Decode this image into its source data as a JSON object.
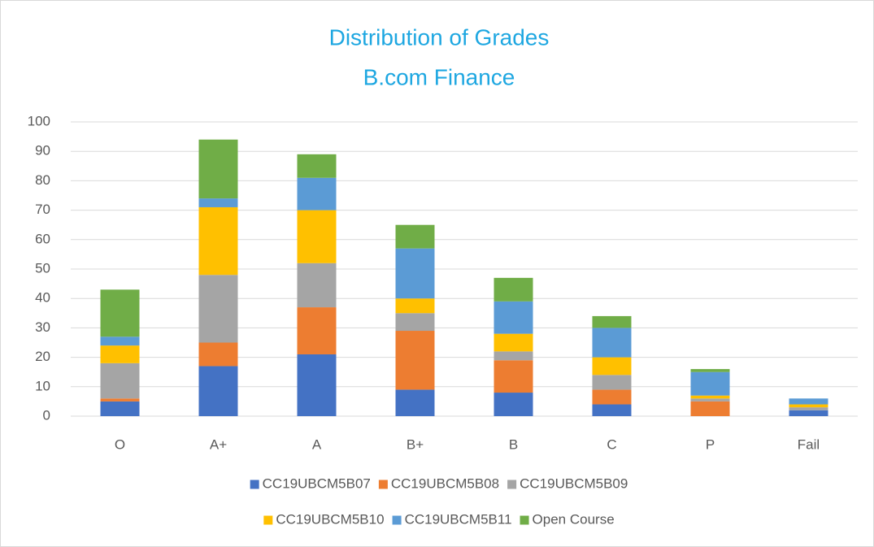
{
  "chart_data": {
    "type": "stacked_bar",
    "title": "Distribution of Grades",
    "subtitle": "B.com Finance",
    "categories": [
      "O",
      "A+",
      "A",
      "B+",
      "B",
      "C",
      "P",
      "Fail"
    ],
    "series": [
      {
        "name": "CC19UBCM5B07",
        "color": "#4472c4",
        "values": [
          5,
          17,
          21,
          9,
          8,
          4,
          0,
          2
        ]
      },
      {
        "name": "CC19UBCM5B08",
        "color": "#ed7d31",
        "values": [
          1,
          8,
          16,
          20,
          11,
          5,
          5,
          0
        ]
      },
      {
        "name": "CC19UBCM5B09",
        "color": "#a5a5a5",
        "values": [
          12,
          23,
          15,
          6,
          3,
          5,
          1,
          1
        ]
      },
      {
        "name": "CC19UBCM5B10",
        "color": "#ffc000",
        "values": [
          6,
          23,
          18,
          5,
          6,
          6,
          1,
          1
        ]
      },
      {
        "name": "CC19UBCM5B11",
        "color": "#5b9bd5",
        "values": [
          3,
          3,
          11,
          17,
          11,
          10,
          8,
          2
        ]
      },
      {
        "name": "Open Course",
        "color": "#70ad47",
        "values": [
          16,
          20,
          8,
          8,
          8,
          4,
          1,
          0
        ]
      }
    ],
    "ylim": [
      0,
      100
    ],
    "yticks": [
      0,
      10,
      20,
      30,
      40,
      50,
      60,
      70,
      80,
      90,
      100
    ],
    "grid": true
  }
}
